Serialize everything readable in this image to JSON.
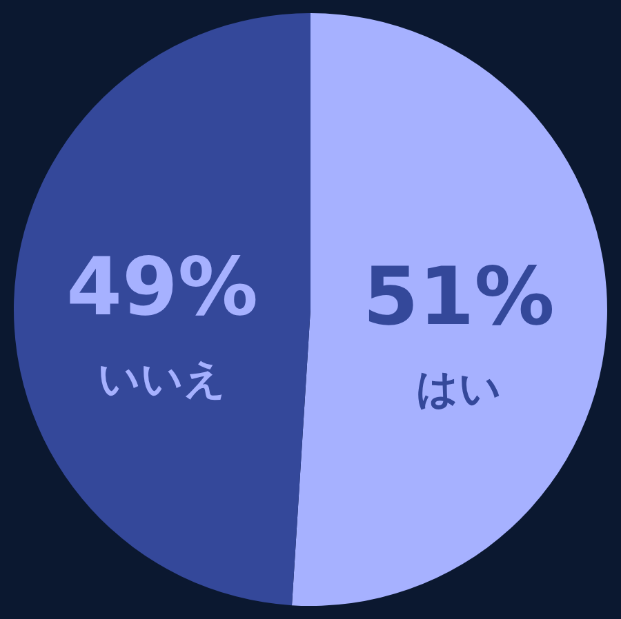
{
  "chart_data": {
    "type": "pie",
    "categories": [
      "はい",
      "いいえ"
    ],
    "values": [
      51,
      49
    ],
    "colors": [
      "#a6b1ff",
      "#34489a"
    ],
    "value_labels": [
      "51%",
      "49%"
    ]
  }
}
